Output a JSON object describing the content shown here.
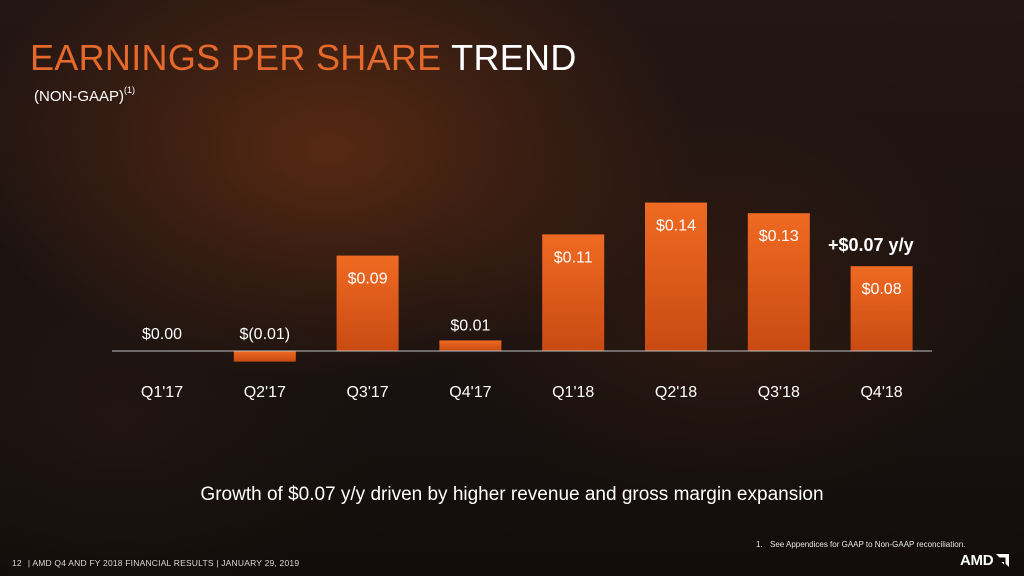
{
  "title": {
    "part1": "EARNINGS PER SHARE",
    "part2": "TREND"
  },
  "subtitle": {
    "text": "(NON-GAAP)",
    "footnote_marker": "(1)"
  },
  "annotation": "+$0.07 y/y",
  "growth_text": "Growth of $0.07 y/y driven by higher revenue and gross margin expansion",
  "footnote": {
    "number": "1.",
    "text": "See Appendices for GAAP to Non-GAAP reconciliation."
  },
  "footer": {
    "page": "12",
    "text": "|  AMD Q4 AND FY 2018 FINANCIAL RESULTS  |  JANUARY 29, 2019"
  },
  "logo": {
    "text": "AMD"
  },
  "colors": {
    "accent": "#e4692b",
    "bar_top": "#ef6a22",
    "bar_bottom": "#c94a12",
    "axis": "#bfbfbf"
  },
  "chart_data": {
    "type": "bar",
    "categories": [
      "Q1'17",
      "Q2'17",
      "Q3'17",
      "Q4'17",
      "Q1'18",
      "Q2'18",
      "Q3'18",
      "Q4'18"
    ],
    "values": [
      0.0,
      -0.01,
      0.09,
      0.01,
      0.11,
      0.14,
      0.13,
      0.08
    ],
    "data_labels": [
      "$0.00",
      "$(0.01)",
      "$0.09",
      "$0.01",
      "$0.11",
      "$0.14",
      "$0.13",
      "$0.08"
    ],
    "grid": false,
    "legend": "none"
  }
}
